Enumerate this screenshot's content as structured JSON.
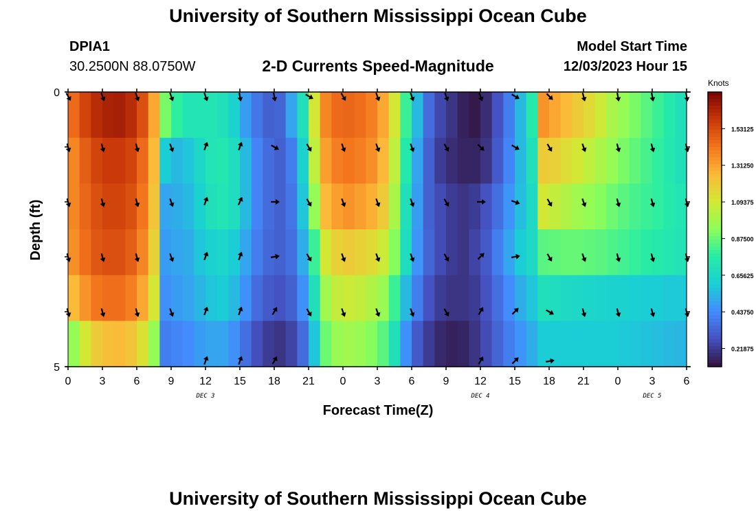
{
  "header": {
    "title": "University of Southern Mississippi Ocean Cube",
    "station_id": "DPIA1",
    "station_coords": "30.2500N  88.0750W",
    "subtitle": "2-D Currents Speed-Magnitude",
    "model_start_label": "Model Start Time",
    "model_start_value": "12/03/2023 Hour 15"
  },
  "footer": {
    "title": "University of Southern Mississippi Ocean Cube"
  },
  "chart_data": {
    "type": "heatmap",
    "title": "2-D Currents Speed-Magnitude",
    "xlabel": "Forecast Time(Z)",
    "ylabel": "Depth (ft)",
    "x_tick_labels": [
      "0",
      "3",
      "6",
      "9",
      "12",
      "15",
      "18",
      "21",
      "0",
      "3",
      "6",
      "9",
      "12",
      "15",
      "18",
      "21",
      "0",
      "3",
      "6"
    ],
    "x_range_hours": [
      0,
      54
    ],
    "date_labels": [
      {
        "hour": 12,
        "label": "DEC 3"
      },
      {
        "hour": 36,
        "label": "DEC 4"
      },
      {
        "hour": 51,
        "label": "DEC 5"
      }
    ],
    "y_range_ft": [
      0,
      5
    ],
    "y_tick_labels": [
      {
        "depth": 0,
        "label": "0"
      },
      {
        "depth": 1,
        "label": ""
      },
      {
        "depth": 2,
        "label": ""
      },
      {
        "depth": 3,
        "label": ""
      },
      {
        "depth": 4,
        "label": ""
      },
      {
        "depth": 5,
        "label": "5"
      }
    ],
    "colorbar": {
      "label": "Knots",
      "min": 0.11,
      "max": 1.75,
      "tick_labels": [
        "1.53125",
        "1.31250",
        "1.09375",
        "0.87500",
        "0.65625",
        "0.43750",
        "0.21875"
      ],
      "tick_values": [
        1.53125,
        1.3125,
        1.09375,
        0.875,
        0.65625,
        0.4375,
        0.21875
      ]
    },
    "speed_knots": [
      [
        1.45,
        1.55,
        1.62,
        1.65,
        1.66,
        1.62,
        1.52,
        1.3,
        0.9,
        0.78,
        0.72,
        0.72,
        0.72,
        0.7,
        0.62,
        0.48,
        0.38,
        0.32,
        0.33,
        0.5,
        0.7,
        1.1,
        1.38,
        1.45,
        1.46,
        1.44,
        1.4,
        1.3,
        1.1,
        0.8,
        0.55,
        0.35,
        0.25,
        0.2,
        0.15,
        0.13,
        0.18,
        0.28,
        0.4,
        0.55,
        0.75,
        1.35,
        1.3,
        1.25,
        1.2,
        1.15,
        1.08,
        1.0,
        0.95,
        0.9,
        0.85,
        0.8,
        0.75,
        0.7
      ],
      [
        1.38,
        1.48,
        1.55,
        1.58,
        1.58,
        1.55,
        1.45,
        1.25,
        0.6,
        0.55,
        0.58,
        0.65,
        0.72,
        0.74,
        0.68,
        0.55,
        0.42,
        0.35,
        0.32,
        0.4,
        0.62,
        1.05,
        1.32,
        1.4,
        1.42,
        1.4,
        1.36,
        1.26,
        1.05,
        0.75,
        0.5,
        0.32,
        0.22,
        0.18,
        0.16,
        0.16,
        0.2,
        0.3,
        0.42,
        0.55,
        0.7,
        1.2,
        1.18,
        1.14,
        1.1,
        1.05,
        1.0,
        0.95,
        0.9,
        0.86,
        0.82,
        0.78,
        0.74,
        0.7
      ],
      [
        1.38,
        1.46,
        1.52,
        1.55,
        1.55,
        1.52,
        1.42,
        1.22,
        0.5,
        0.52,
        0.55,
        0.62,
        0.7,
        0.72,
        0.68,
        0.55,
        0.42,
        0.35,
        0.32,
        0.38,
        0.58,
        0.95,
        1.25,
        1.32,
        1.35,
        1.32,
        1.28,
        1.2,
        1.0,
        0.7,
        0.48,
        0.32,
        0.26,
        0.22,
        0.2,
        0.22,
        0.28,
        0.36,
        0.46,
        0.56,
        0.66,
        1.1,
        1.06,
        1.02,
        0.98,
        0.95,
        0.92,
        0.88,
        0.85,
        0.82,
        0.8,
        0.78,
        0.75,
        0.72
      ],
      [
        1.36,
        1.44,
        1.5,
        1.52,
        1.52,
        1.48,
        1.38,
        1.18,
        0.48,
        0.5,
        0.52,
        0.58,
        0.62,
        0.64,
        0.6,
        0.5,
        0.4,
        0.34,
        0.32,
        0.36,
        0.52,
        0.8,
        1.1,
        1.18,
        1.2,
        1.18,
        1.15,
        1.08,
        0.92,
        0.68,
        0.46,
        0.33,
        0.26,
        0.22,
        0.2,
        0.24,
        0.3,
        0.4,
        0.5,
        0.6,
        0.66,
        0.85,
        0.86,
        0.87,
        0.87,
        0.86,
        0.85,
        0.83,
        0.81,
        0.79,
        0.77,
        0.75,
        0.73,
        0.71
      ],
      [
        1.25,
        1.35,
        1.42,
        1.44,
        1.44,
        1.4,
        1.3,
        1.1,
        0.45,
        0.48,
        0.5,
        0.54,
        0.58,
        0.6,
        0.55,
        0.45,
        0.35,
        0.3,
        0.28,
        0.32,
        0.45,
        0.7,
        0.98,
        1.06,
        1.08,
        1.06,
        1.02,
        0.96,
        0.8,
        0.55,
        0.4,
        0.28,
        0.22,
        0.2,
        0.2,
        0.22,
        0.28,
        0.36,
        0.44,
        0.52,
        0.58,
        0.7,
        0.68,
        0.66,
        0.65,
        0.64,
        0.63,
        0.62,
        0.62,
        0.61,
        0.6,
        0.6,
        0.59,
        0.59
      ],
      [
        0.95,
        1.1,
        1.2,
        1.24,
        1.25,
        1.22,
        1.12,
        0.95,
        0.4,
        0.42,
        0.44,
        0.48,
        0.5,
        0.5,
        0.45,
        0.36,
        0.27,
        0.22,
        0.2,
        0.24,
        0.35,
        0.58,
        0.88,
        0.96,
        0.98,
        0.96,
        0.92,
        0.85,
        0.7,
        0.45,
        0.3,
        0.22,
        0.17,
        0.15,
        0.16,
        0.2,
        0.26,
        0.33,
        0.4,
        0.46,
        0.52,
        0.6,
        0.6,
        0.6,
        0.6,
        0.6,
        0.6,
        0.6,
        0.59,
        0.58,
        0.57,
        0.56,
        0.55,
        0.54
      ]
    ],
    "current_direction_deg": [
      [
        150,
        160,
        160,
        160,
        160,
        170,
        170,
        120,
        150,
        160,
        160,
        160,
        160,
        120,
        135,
        165,
        170,
        170,
        170
      ],
      [
        165,
        165,
        165,
        160,
        20,
        20,
        120,
        150,
        160,
        160,
        160,
        150,
        135,
        120,
        150,
        160,
        165,
        165,
        165
      ],
      [
        165,
        165,
        165,
        160,
        20,
        25,
        90,
        150,
        160,
        160,
        160,
        150,
        90,
        110,
        150,
        160,
        165,
        165,
        165
      ],
      [
        165,
        165,
        165,
        160,
        20,
        20,
        80,
        150,
        160,
        160,
        160,
        150,
        45,
        80,
        150,
        160,
        165,
        165,
        165
      ],
      [
        165,
        165,
        165,
        160,
        20,
        20,
        30,
        150,
        160,
        160,
        160,
        150,
        30,
        45,
        120,
        165,
        165,
        165,
        165
      ],
      [
        null,
        null,
        null,
        null,
        20,
        20,
        30,
        null,
        null,
        null,
        null,
        null,
        30,
        45,
        80,
        null,
        null,
        null,
        null
      ]
    ]
  }
}
